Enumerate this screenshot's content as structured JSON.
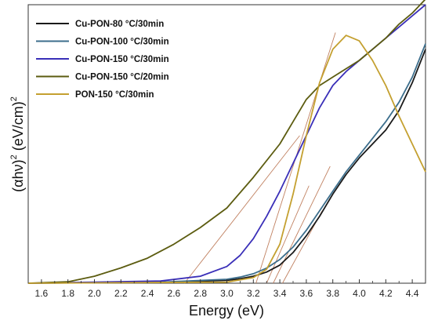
{
  "chart_data": {
    "type": "line",
    "title": "",
    "xlabel": "Energy (eV)",
    "ylabel_main": "(αhν)",
    "ylabel_exp1": "2",
    "ylabel_mid": " (eV/cm)",
    "ylabel_exp2": "2",
    "xlim": [
      1.5,
      4.5
    ],
    "ylim": [
      0,
      1
    ],
    "yticks_shown": false,
    "x_ticks": [
      1.6,
      1.8,
      2.0,
      2.2,
      2.4,
      2.6,
      2.8,
      3.0,
      3.2,
      3.4,
      3.6,
      3.8,
      4.0,
      4.2,
      4.4
    ],
    "x_tick_labels": [
      "1.6",
      "1.8",
      "2.0",
      "2.2",
      "2.4",
      "2.6",
      "2.8",
      "3.0",
      "3.2",
      "3.4",
      "3.6",
      "3.8",
      "4.0",
      "4.2",
      "4.4"
    ],
    "legend_position": "top-left",
    "series": [
      {
        "name": "Cu-PON-80 °C/30min",
        "color": "#1a1a1a",
        "x": [
          1.5,
          2.5,
          3.0,
          3.1,
          3.2,
          3.3,
          3.4,
          3.5,
          3.6,
          3.7,
          3.8,
          3.9,
          4.0,
          4.1,
          4.2,
          4.3,
          4.4,
          4.5
        ],
        "y": [
          0.0,
          0.003,
          0.01,
          0.016,
          0.025,
          0.04,
          0.065,
          0.11,
          0.17,
          0.24,
          0.32,
          0.39,
          0.45,
          0.5,
          0.55,
          0.62,
          0.72,
          0.84
        ]
      },
      {
        "name": "Cu-PON-100 °C/30min",
        "color": "#3c6e8c",
        "x": [
          1.5,
          2.5,
          3.0,
          3.1,
          3.2,
          3.3,
          3.4,
          3.5,
          3.6,
          3.7,
          3.8,
          3.9,
          4.0,
          4.1,
          4.2,
          4.3,
          4.4,
          4.5
        ],
        "y": [
          0.0,
          0.004,
          0.014,
          0.022,
          0.034,
          0.054,
          0.085,
          0.13,
          0.19,
          0.26,
          0.33,
          0.4,
          0.46,
          0.52,
          0.58,
          0.65,
          0.74,
          0.86
        ]
      },
      {
        "name": "Cu-PON-150 °C/30min",
        "color": "#3a2fb8",
        "x": [
          1.5,
          2.5,
          2.8,
          3.0,
          3.1,
          3.2,
          3.3,
          3.4,
          3.5,
          3.6,
          3.7,
          3.8,
          3.9,
          4.0,
          4.1,
          4.2,
          4.3,
          4.4,
          4.5
        ],
        "y": [
          0.0,
          0.008,
          0.025,
          0.06,
          0.1,
          0.16,
          0.24,
          0.33,
          0.43,
          0.53,
          0.63,
          0.71,
          0.76,
          0.8,
          0.84,
          0.88,
          0.92,
          0.96,
          1.0
        ]
      },
      {
        "name": "Cu-PON-150 °C/20min",
        "color": "#5c5c10",
        "x": [
          1.5,
          1.8,
          2.0,
          2.2,
          2.4,
          2.6,
          2.8,
          3.0,
          3.2,
          3.4,
          3.5,
          3.6,
          3.7,
          3.8,
          3.9,
          4.0,
          4.1,
          4.2,
          4.3,
          4.4,
          4.5
        ],
        "y": [
          0.0,
          0.005,
          0.025,
          0.055,
          0.09,
          0.14,
          0.2,
          0.27,
          0.38,
          0.5,
          0.58,
          0.66,
          0.71,
          0.74,
          0.77,
          0.8,
          0.84,
          0.88,
          0.93,
          0.97,
          1.02
        ]
      },
      {
        "name": "PON-150 °C/30min",
        "color": "#c4a030",
        "x": [
          1.5,
          3.0,
          3.2,
          3.3,
          3.4,
          3.5,
          3.6,
          3.7,
          3.8,
          3.9,
          4.0,
          4.1,
          4.2,
          4.3,
          4.4,
          4.5
        ],
        "y": [
          0.0,
          0.004,
          0.02,
          0.05,
          0.14,
          0.32,
          0.53,
          0.72,
          0.84,
          0.89,
          0.87,
          0.8,
          0.71,
          0.6,
          0.5,
          0.4
        ]
      }
    ],
    "tangent_lines": [
      {
        "color": "#c08060",
        "x": [
          2.68,
          3.55
        ],
        "y": [
          0.0,
          0.53
        ]
      },
      {
        "color": "#c08060",
        "x": [
          3.22,
          3.82
        ],
        "y": [
          0.0,
          0.9
        ]
      },
      {
        "color": "#c08060",
        "x": [
          3.3,
          3.62
        ],
        "y": [
          0.0,
          0.35
        ]
      },
      {
        "color": "#c08060",
        "x": [
          3.35,
          3.78
        ],
        "y": [
          0.0,
          0.42
        ]
      },
      {
        "color": "#c08060",
        "x": [
          3.42,
          3.72
        ],
        "y": [
          0.0,
          0.26
        ]
      }
    ]
  }
}
